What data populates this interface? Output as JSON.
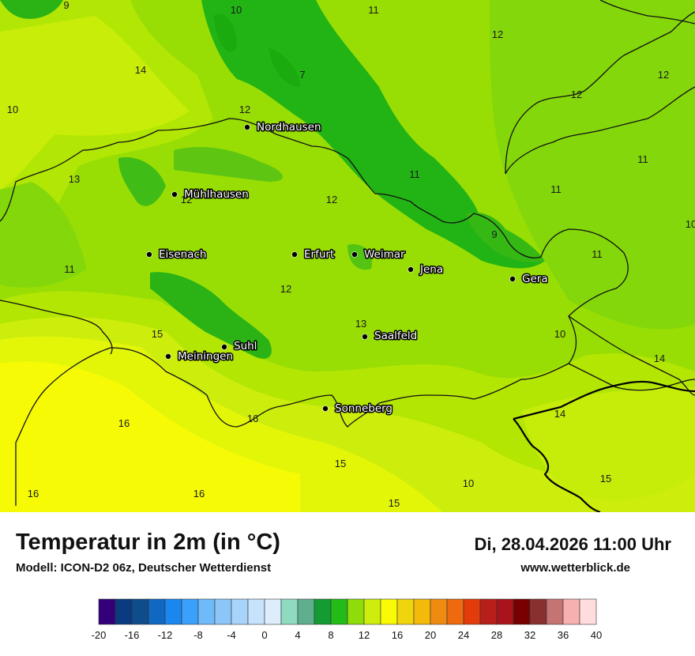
{
  "title": "Temperatur in 2m (in °C)",
  "model": "Modell: ICON-D2 06z, Deutscher Wetterdienst",
  "datetime": "Di, 28.04.2026 11:00 Uhr",
  "site": "www.wetterblick.de",
  "cities": [
    {
      "name": "Nordhausen"
    },
    {
      "name": "Mühlhausen"
    },
    {
      "name": "Eisenach"
    },
    {
      "name": "Erfurt"
    },
    {
      "name": "Weimar"
    },
    {
      "name": "Jena"
    },
    {
      "name": "Gera"
    },
    {
      "name": "Suhl"
    },
    {
      "name": "Meiningen"
    },
    {
      "name": "Saalfeld"
    },
    {
      "name": "Sonneberg"
    }
  ],
  "temperature_values": [
    "9",
    "10",
    "11",
    "12",
    "14",
    "7",
    "10",
    "12",
    "12",
    "12",
    "11",
    "13",
    "12",
    "12",
    "11",
    "9",
    "11",
    "11",
    "11",
    "12",
    "13",
    "10",
    "15",
    "14",
    "14",
    "16",
    "16",
    "15",
    "10",
    "15",
    "16",
    "16",
    "15",
    "10"
  ],
  "legend": {
    "colors": [
      "#34007a",
      "#0a3b80",
      "#0e4c8c",
      "#1168c2",
      "#1a87f0",
      "#3aa0fb",
      "#6fbaf9",
      "#8cc6f8",
      "#a8d4fb",
      "#c6e2fd",
      "#deedfc",
      "#8edbbf",
      "#5faf8f",
      "#139c31",
      "#22bb17",
      "#8edc0a",
      "#cdee0d",
      "#f8fb05",
      "#f1d50c",
      "#f3ba0a",
      "#f08b11",
      "#ef6a0e",
      "#e43b0b",
      "#b81f1a",
      "#a8131c",
      "#790000",
      "#87302f",
      "#c57373",
      "#f6b0ae",
      "#ffdcdd"
    ],
    "ticks": [
      "-20",
      "-16",
      "-12",
      "-8",
      "-4",
      "0",
      "4",
      "8",
      "12",
      "16",
      "20",
      "24",
      "28",
      "32",
      "36",
      "40"
    ]
  },
  "map_colors": {
    "c9": "#1fb414",
    "c11": "#7fd60a",
    "c12": "#98de05",
    "c13": "#b4e604",
    "c14": "#cdee0d",
    "c15": "#e4f608",
    "c16": "#f6fb05"
  }
}
